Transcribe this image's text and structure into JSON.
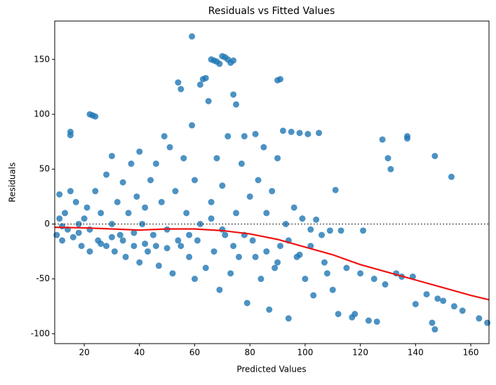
{
  "chart_data": {
    "type": "scatter",
    "title": "Residuals vs Fitted Values",
    "xlabel": "Predicted Values",
    "ylabel": "Residuals",
    "xlim": [
      9.3,
      166.6
    ],
    "ylim": [
      -109,
      185
    ],
    "xticks": [
      20,
      40,
      60,
      80,
      100,
      120,
      140,
      160
    ],
    "yticks": [
      -100,
      -50,
      0,
      50,
      100,
      150
    ],
    "color": "#1f77b4",
    "x": [
      10,
      11,
      11,
      12,
      13,
      14,
      15,
      15,
      15,
      16,
      17,
      18,
      19,
      20,
      21,
      22,
      23,
      24,
      22,
      24,
      25,
      26,
      28,
      28,
      30,
      30,
      31,
      32,
      33,
      34,
      35,
      36,
      37,
      38,
      39,
      40,
      40,
      41,
      42,
      43,
      44,
      45,
      46,
      47,
      48,
      49,
      50,
      51,
      52,
      53,
      54,
      55,
      55,
      56,
      57,
      58,
      59,
      59,
      60,
      60,
      61,
      62,
      63,
      64,
      64,
      65,
      66,
      67,
      68,
      69,
      70,
      71,
      72,
      73,
      74,
      66,
      67,
      68,
      69,
      70,
      71,
      72,
      73,
      74,
      75,
      75,
      76,
      77,
      78,
      79,
      80,
      81,
      82,
      83,
      84,
      85,
      86,
      87,
      88,
      89,
      90,
      91,
      90,
      91,
      92,
      93,
      94,
      95,
      96,
      97,
      98,
      99,
      100,
      101,
      102,
      103,
      104,
      105,
      106,
      107,
      108,
      109,
      110,
      111,
      112,
      113,
      115,
      117,
      118,
      120,
      121,
      123,
      125,
      126,
      128,
      129,
      130,
      131,
      133,
      135,
      137,
      137,
      139,
      140,
      144,
      146,
      147,
      147,
      148,
      150,
      153,
      154,
      157,
      163,
      166,
      12,
      18,
      22,
      26,
      30,
      34,
      38,
      42,
      46,
      50,
      54,
      58,
      62,
      66,
      70,
      74,
      78,
      82,
      86,
      90,
      94,
      98,
      102
    ],
    "values": [
      -10,
      5,
      27,
      -15,
      10,
      -5,
      84,
      81,
      30,
      -12,
      20,
      -8,
      -20,
      5,
      15,
      100,
      99,
      98,
      -25,
      30,
      -15,
      10,
      45,
      -20,
      62,
      0,
      -25,
      20,
      -10,
      38,
      -30,
      10,
      55,
      -20,
      25,
      66,
      -35,
      0,
      15,
      -25,
      40,
      -10,
      55,
      -38,
      20,
      80,
      -5,
      70,
      -45,
      30,
      129,
      123,
      -20,
      60,
      10,
      -30,
      171,
      90,
      40,
      -50,
      -15,
      127,
      132,
      133,
      -40,
      112,
      150,
      149,
      148,
      146,
      153,
      152,
      150,
      147,
      149,
      20,
      -25,
      60,
      -60,
      35,
      -10,
      80,
      -45,
      118,
      109,
      10,
      -30,
      55,
      80,
      -72,
      25,
      -15,
      82,
      40,
      -50,
      70,
      10,
      -78,
      30,
      -40,
      131,
      132,
      60,
      -20,
      85,
      0,
      -86,
      84,
      15,
      -30,
      83,
      5,
      -50,
      82,
      -5,
      -65,
      4,
      83,
      -10,
      -35,
      -45,
      -6,
      -60,
      31,
      -82,
      -6,
      -40,
      -85,
      -82,
      -45,
      -6,
      -88,
      -50,
      -89,
      77,
      -55,
      60,
      50,
      -45,
      -48,
      80,
      78,
      -48,
      -73,
      -64,
      -90,
      -96,
      62,
      -68,
      -70,
      43,
      -75,
      -79,
      -86,
      -90,
      -2,
      0,
      -5,
      -18,
      -12,
      -15,
      -8,
      -18,
      -20,
      -22,
      -15,
      -10,
      0,
      5,
      -5,
      -20,
      -10,
      -30,
      -25,
      -35,
      -15,
      -28,
      -20
    ],
    "trend": {
      "color": "#ee1111",
      "x": [
        9.3,
        20,
        30,
        40,
        50,
        60,
        70,
        80,
        90,
        100,
        110,
        120,
        130,
        140,
        150,
        160,
        166.6
      ],
      "values": [
        -3,
        -3.5,
        -4.5,
        -5.5,
        -4.5,
        -4.5,
        -6,
        -9,
        -14,
        -21,
        -28,
        -37,
        -44,
        -51,
        -58,
        -65,
        -69
      ]
    },
    "hline": 0
  }
}
